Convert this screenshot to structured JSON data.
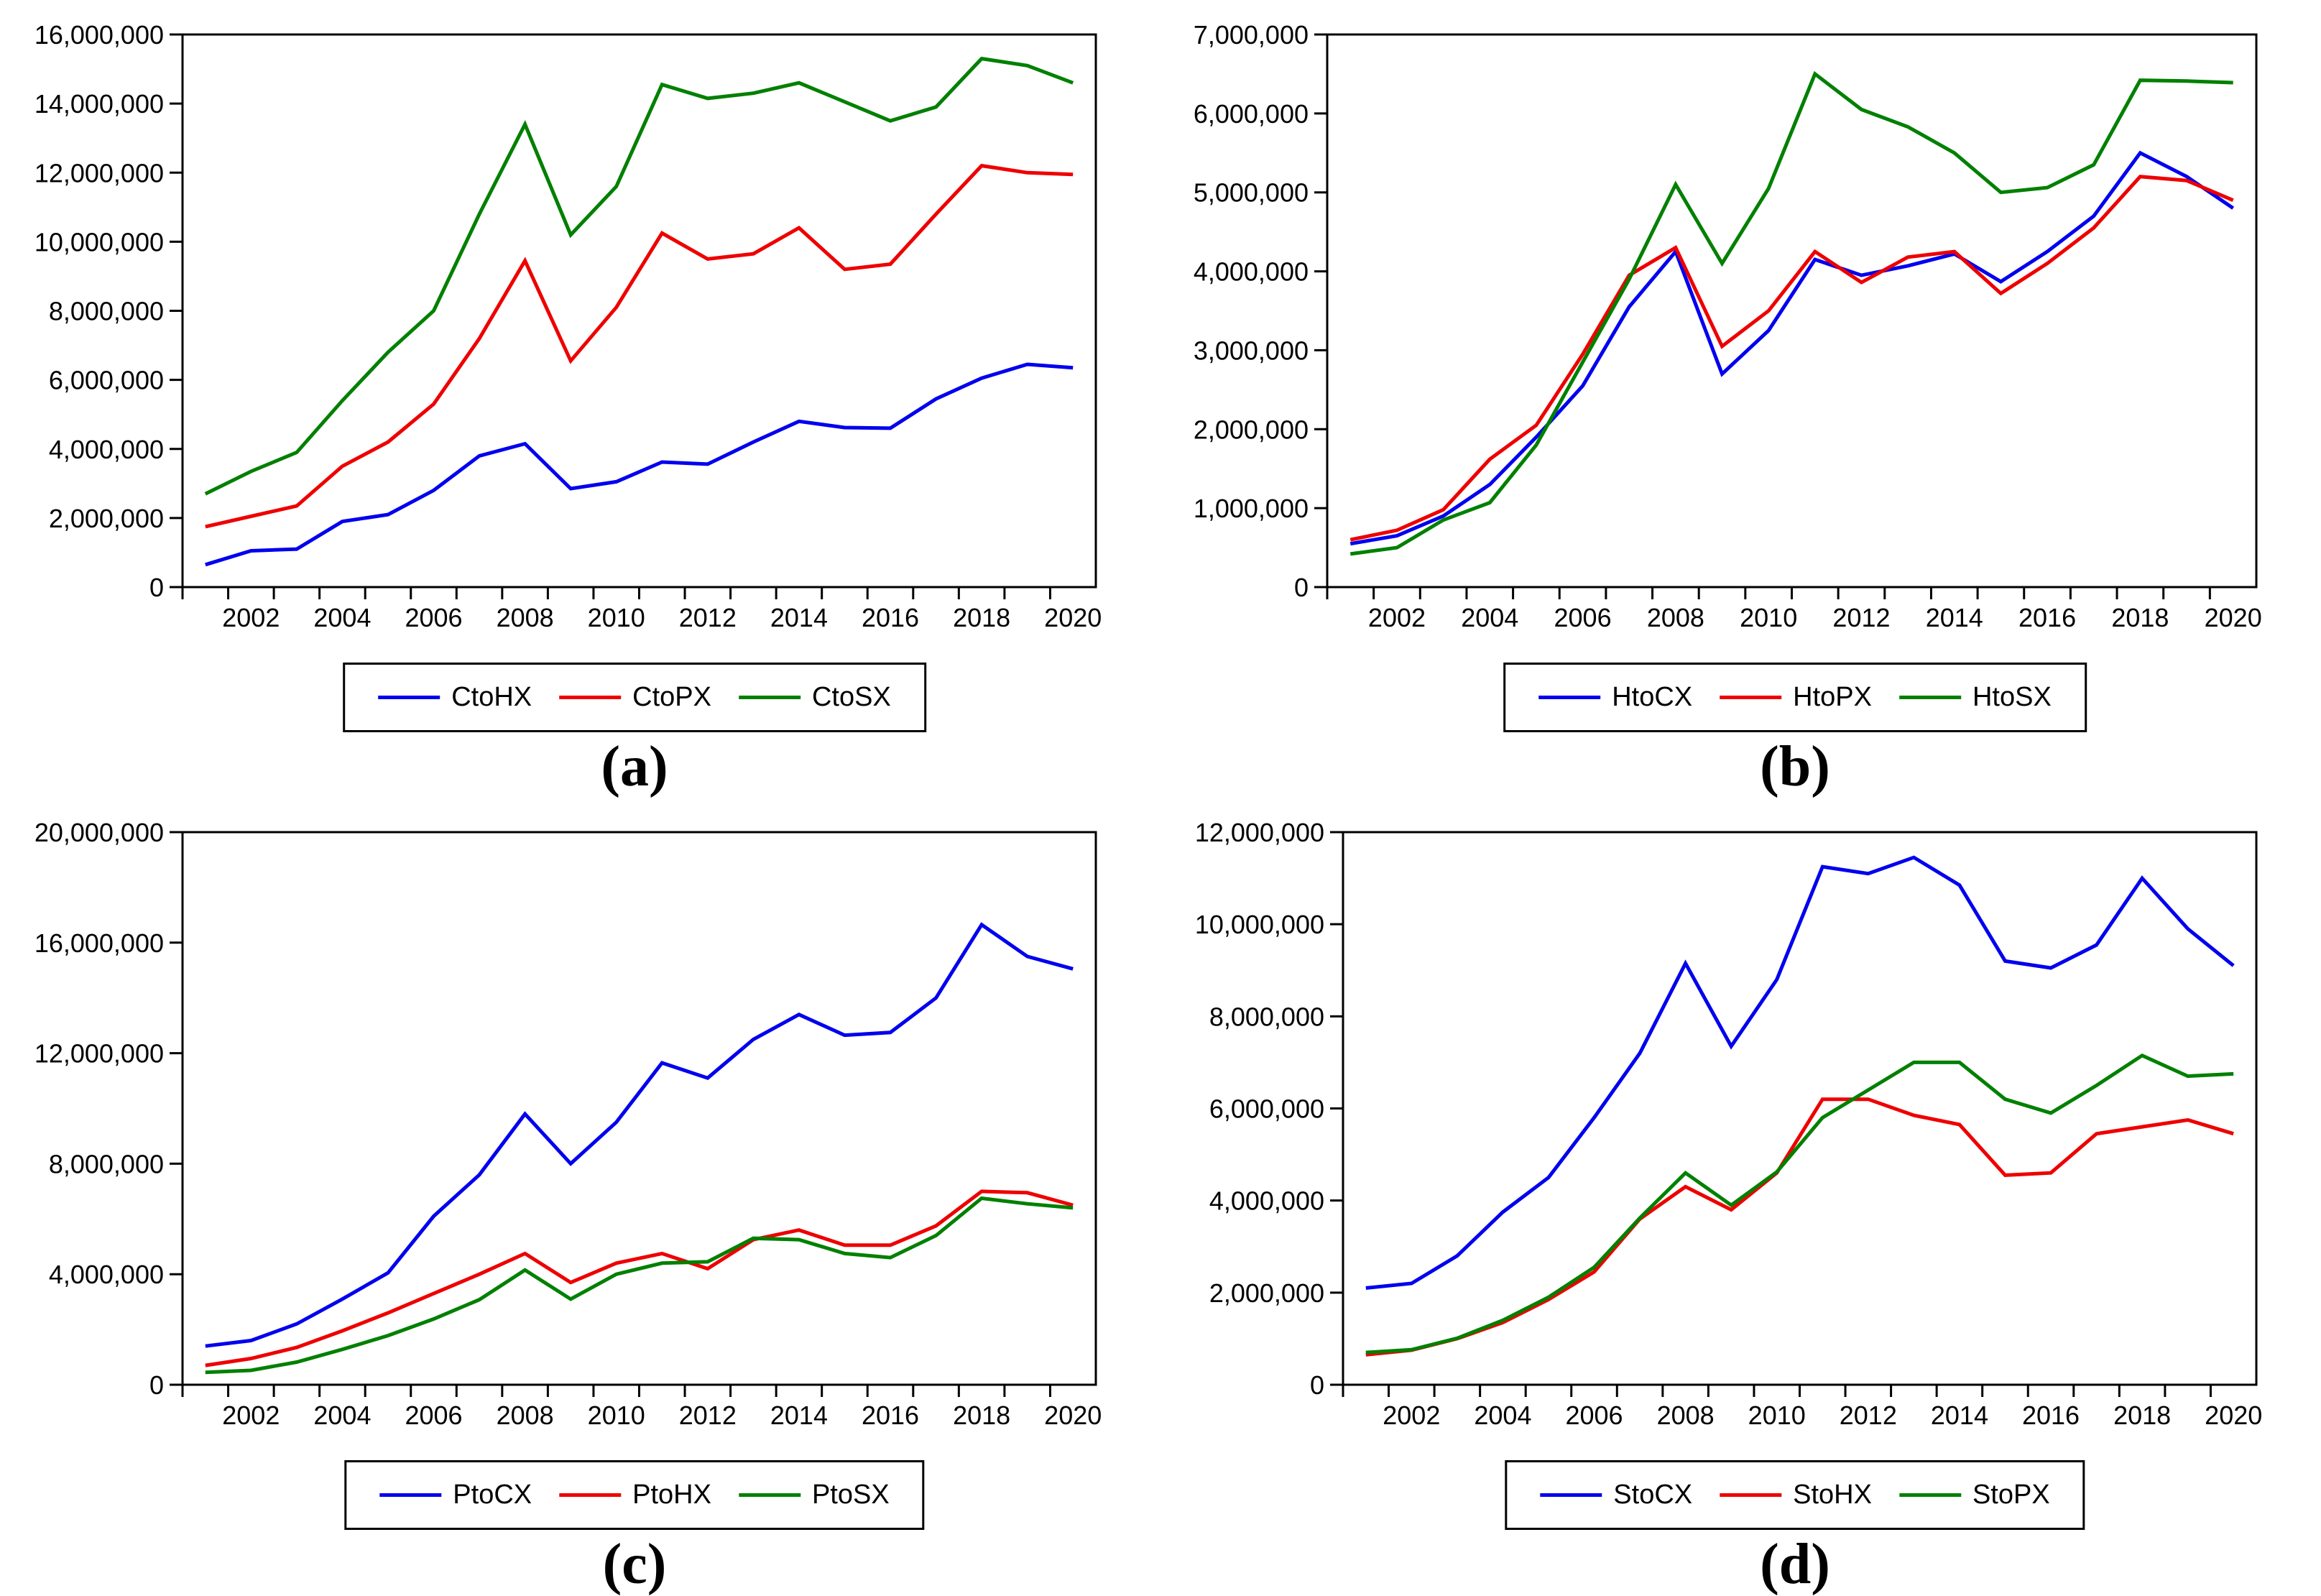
{
  "page": {
    "background": "#ffffff",
    "text_color": "#000000",
    "frame_color": "#000000"
  },
  "chart_data": [
    {
      "type": "line",
      "caption": "(a)",
      "x": [
        2001,
        2002,
        2003,
        2004,
        2005,
        2006,
        2007,
        2008,
        2009,
        2010,
        2011,
        2012,
        2013,
        2014,
        2015,
        2016,
        2017,
        2018,
        2019,
        2020
      ],
      "x_tick_labels": [
        "2002",
        "2004",
        "2006",
        "2008",
        "2010",
        "2012",
        "2014",
        "2016",
        "2018",
        "2020"
      ],
      "ylim": [
        0,
        16000000
      ],
      "y_tick_step": 2000000,
      "y_tick_labels": [
        "0",
        "2,000,000",
        "4,000,000",
        "6,000,000",
        "8,000,000",
        "10,000,000",
        "12,000,000",
        "14,000,000",
        "16,000,000"
      ],
      "grid": false,
      "legend_position": "bottom",
      "series": [
        {
          "name": "CtoHX",
          "color": "#0000EE",
          "values": [
            650000,
            1050000,
            1100000,
            1900000,
            2100000,
            2800000,
            3800000,
            4150000,
            2850000,
            3050000,
            3620000,
            3560000,
            4200000,
            4800000,
            4620000,
            4600000,
            5450000,
            6050000,
            6450000,
            6350000
          ]
        },
        {
          "name": "CtoPX",
          "color": "#EE0000",
          "values": [
            1750000,
            2050000,
            2350000,
            3500000,
            4200000,
            5300000,
            7200000,
            9450000,
            6550000,
            8100000,
            10250000,
            9500000,
            9650000,
            10400000,
            9200000,
            9350000,
            10800000,
            12200000,
            12000000,
            11950000
          ]
        },
        {
          "name": "CtoSX",
          "color": "#008000",
          "values": [
            2700000,
            3350000,
            3900000,
            5400000,
            6800000,
            8000000,
            10800000,
            13400000,
            10200000,
            11600000,
            14550000,
            14150000,
            14300000,
            14600000,
            14050000,
            13500000,
            13900000,
            15300000,
            15100000,
            14600000
          ]
        }
      ]
    },
    {
      "type": "line",
      "caption": "(b)",
      "x": [
        2001,
        2002,
        2003,
        2004,
        2005,
        2006,
        2007,
        2008,
        2009,
        2010,
        2011,
        2012,
        2013,
        2014,
        2015,
        2016,
        2017,
        2018,
        2019,
        2020
      ],
      "x_tick_labels": [
        "2002",
        "2004",
        "2006",
        "2008",
        "2010",
        "2012",
        "2014",
        "2016",
        "2018",
        "2020"
      ],
      "ylim": [
        0,
        7000000
      ],
      "y_tick_step": 1000000,
      "y_tick_labels": [
        "0",
        "1,000,000",
        "2,000,000",
        "3,000,000",
        "4,000,000",
        "5,000,000",
        "6,000,000",
        "7,000,000"
      ],
      "grid": false,
      "legend_position": "bottom",
      "series": [
        {
          "name": "HtoCX",
          "color": "#0000EE",
          "values": [
            550000,
            650000,
            900000,
            1300000,
            1900000,
            2550000,
            3550000,
            4250000,
            2700000,
            3250000,
            4150000,
            3950000,
            4070000,
            4220000,
            3870000,
            4250000,
            4700000,
            5500000,
            5200000,
            4800000
          ]
        },
        {
          "name": "HtoPX",
          "color": "#EE0000",
          "values": [
            600000,
            720000,
            980000,
            1620000,
            2050000,
            2950000,
            3950000,
            4300000,
            3050000,
            3500000,
            4250000,
            3860000,
            4180000,
            4250000,
            3720000,
            4100000,
            4550000,
            5200000,
            5150000,
            4900000
          ]
        },
        {
          "name": "HtoSX",
          "color": "#008000",
          "values": [
            420000,
            500000,
            850000,
            1070000,
            1800000,
            2850000,
            3900000,
            5100000,
            4100000,
            5050000,
            6500000,
            6050000,
            5830000,
            5500000,
            5000000,
            5060000,
            5350000,
            6420000,
            6410000,
            6390000
          ]
        }
      ]
    },
    {
      "type": "line",
      "caption": "(c)",
      "x": [
        2001,
        2002,
        2003,
        2004,
        2005,
        2006,
        2007,
        2008,
        2009,
        2010,
        2011,
        2012,
        2013,
        2014,
        2015,
        2016,
        2017,
        2018,
        2019,
        2020
      ],
      "x_tick_labels": [
        "2002",
        "2004",
        "2006",
        "2008",
        "2010",
        "2012",
        "2014",
        "2016",
        "2018",
        "2020"
      ],
      "ylim": [
        0,
        20000000
      ],
      "y_tick_step": 4000000,
      "y_tick_labels": [
        "0",
        "4,000,000",
        "8,000,000",
        "12,000,000",
        "16,000,000",
        "20,000,000"
      ],
      "grid": false,
      "legend_position": "bottom",
      "series": [
        {
          "name": "PtoCX",
          "color": "#0000EE",
          "values": [
            1400000,
            1600000,
            2200000,
            3100000,
            4050000,
            6100000,
            7600000,
            9800000,
            8000000,
            9500000,
            11650000,
            11100000,
            12500000,
            13400000,
            12650000,
            12750000,
            14000000,
            16650000,
            15500000,
            15050000
          ]
        },
        {
          "name": "PtoHX",
          "color": "#EE0000",
          "values": [
            700000,
            950000,
            1350000,
            1950000,
            2600000,
            3300000,
            4000000,
            4750000,
            3700000,
            4400000,
            4750000,
            4200000,
            5250000,
            5600000,
            5050000,
            5050000,
            5750000,
            7000000,
            6950000,
            6500000
          ]
        },
        {
          "name": "PtoSX",
          "color": "#008000",
          "values": [
            450000,
            520000,
            820000,
            1280000,
            1780000,
            2380000,
            3080000,
            4150000,
            3100000,
            4000000,
            4400000,
            4450000,
            5300000,
            5250000,
            4750000,
            4600000,
            5400000,
            6750000,
            6550000,
            6400000
          ]
        }
      ]
    },
    {
      "type": "line",
      "caption": "(d)",
      "x": [
        2001,
        2002,
        2003,
        2004,
        2005,
        2006,
        2007,
        2008,
        2009,
        2010,
        2011,
        2012,
        2013,
        2014,
        2015,
        2016,
        2017,
        2018,
        2019,
        2020
      ],
      "x_tick_labels": [
        "2002",
        "2004",
        "2006",
        "2008",
        "2010",
        "2012",
        "2014",
        "2016",
        "2018",
        "2020"
      ],
      "ylim": [
        0,
        12000000
      ],
      "y_tick_step": 2000000,
      "y_tick_labels": [
        "0",
        "2,000,000",
        "4,000,000",
        "6,000,000",
        "8,000,000",
        "10,000,000",
        "12,000,000"
      ],
      "grid": false,
      "legend_position": "bottom",
      "series": [
        {
          "name": "StoCX",
          "color": "#0000EE",
          "values": [
            2100000,
            2200000,
            2800000,
            3750000,
            4500000,
            5800000,
            7200000,
            9150000,
            7350000,
            8800000,
            11250000,
            11100000,
            11450000,
            10850000,
            9200000,
            9050000,
            9550000,
            11000000,
            9900000,
            9100000
          ]
        },
        {
          "name": "StoHX",
          "color": "#EE0000",
          "values": [
            650000,
            750000,
            1000000,
            1350000,
            1850000,
            2450000,
            3600000,
            4300000,
            3800000,
            4600000,
            6200000,
            6200000,
            5850000,
            5650000,
            4550000,
            4600000,
            5450000,
            5600000,
            5750000,
            5450000
          ]
        },
        {
          "name": "StoPX",
          "color": "#008000",
          "values": [
            700000,
            760000,
            1010000,
            1400000,
            1900000,
            2550000,
            3620000,
            4600000,
            3900000,
            4620000,
            5800000,
            6400000,
            7000000,
            7000000,
            6200000,
            5900000,
            6500000,
            7150000,
            6700000,
            6750000
          ]
        }
      ]
    }
  ]
}
